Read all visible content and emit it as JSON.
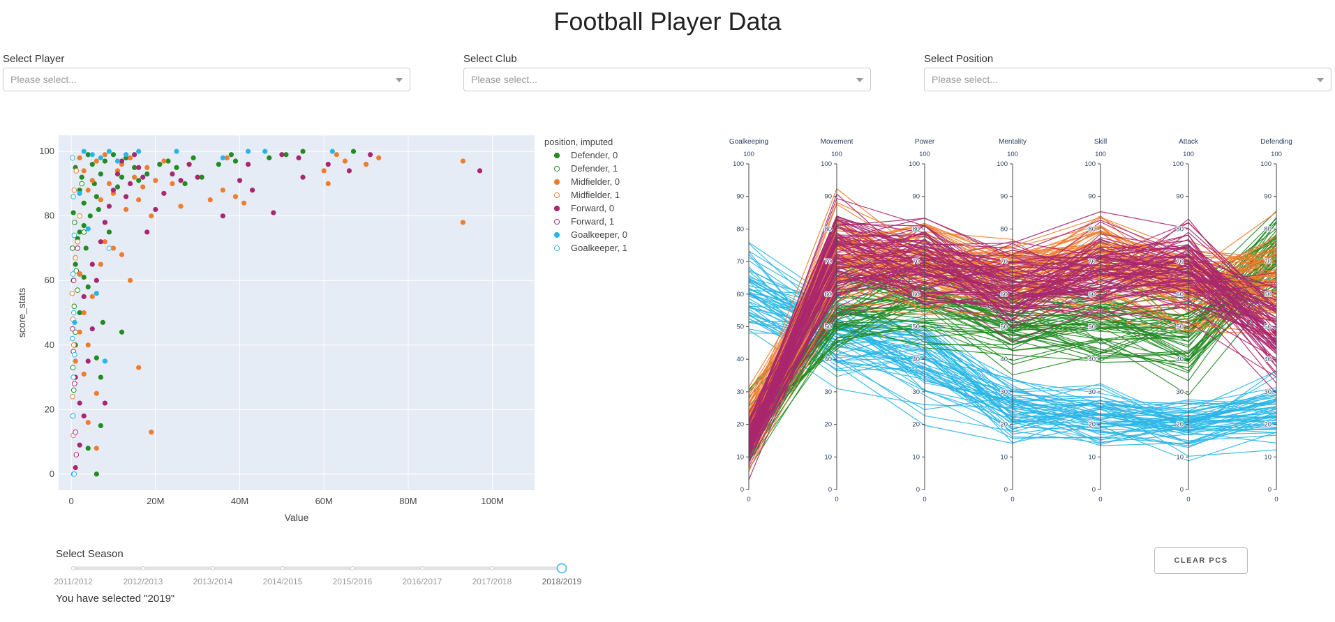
{
  "page": {
    "title": "Football Player Data"
  },
  "filters": {
    "player": {
      "label": "Select Player",
      "placeholder": "Please select..."
    },
    "club": {
      "label": "Select Club",
      "placeholder": "Please select..."
    },
    "position": {
      "label": "Select Position",
      "placeholder": "Please select..."
    }
  },
  "season": {
    "label": "Select Season",
    "ticks": [
      "2011/2012",
      "2012/2013",
      "2013/2014",
      "2014/2015",
      "2015/2016",
      "2016/2017",
      "2017/2018",
      "2018/2019"
    ],
    "selected_index": 7,
    "selected_text": "You have selected \"2019\""
  },
  "clear_button": {
    "label": "CLEAR PCS"
  },
  "colors": {
    "Defender": "#228b22",
    "Midfielder": "#f07c2e",
    "Forward": "#a8276e",
    "Goalkeeper": "#29b6e6",
    "plot_bg": "#e5ecf6"
  },
  "chart_data": [
    {
      "type": "scatter",
      "xlabel": "Value",
      "ylabel": "score_stats",
      "x_ticks": [
        "0",
        "20M",
        "40M",
        "60M",
        "80M",
        "100M"
      ],
      "x_tick_values": [
        0,
        20,
        40,
        60,
        80,
        100
      ],
      "y_ticks": [
        0,
        20,
        40,
        60,
        80,
        100
      ],
      "xlim": [
        -3,
        110
      ],
      "ylim": [
        -5,
        105
      ],
      "legend_title": "position, imputed",
      "legend_position": "right",
      "series": [
        {
          "name": "Defender, 0",
          "position": "Defender",
          "filled": true,
          "points": [
            [
              0.5,
              81
            ],
            [
              1,
              95
            ],
            [
              1.5,
              73
            ],
            [
              2,
              88
            ],
            [
              2.5,
              92
            ],
            [
              3,
              84
            ],
            [
              3.5,
              70
            ],
            [
              4,
              99
            ],
            [
              5,
              96
            ],
            [
              5.5,
              90
            ],
            [
              6,
              86
            ],
            [
              7,
              93
            ],
            [
              8,
              97
            ],
            [
              9,
              75
            ],
            [
              10,
              99
            ],
            [
              11,
              89
            ],
            [
              12,
              92
            ],
            [
              13,
              98
            ],
            [
              15,
              95
            ],
            [
              16,
              91
            ],
            [
              18,
              93
            ],
            [
              21,
              96
            ],
            [
              23,
              97
            ],
            [
              25,
              95
            ],
            [
              27,
              90
            ],
            [
              29,
              98
            ],
            [
              31,
              92
            ],
            [
              35,
              96
            ],
            [
              38,
              99
            ],
            [
              39,
              97
            ],
            [
              47,
              98
            ],
            [
              51,
              99
            ],
            [
              55,
              100
            ],
            [
              67,
              100
            ],
            [
              1,
              65
            ],
            [
              2,
              50
            ],
            [
              3,
              61
            ],
            [
              4,
              58
            ],
            [
              6,
              36
            ],
            [
              7,
              30
            ],
            [
              7.5,
              47
            ],
            [
              12,
              44
            ],
            [
              4,
              8
            ],
            [
              6,
              0
            ],
            [
              7,
              15
            ],
            [
              1,
              40
            ],
            [
              2,
              75
            ],
            [
              3,
              77
            ],
            [
              4.5,
              80
            ],
            [
              6.5,
              82
            ],
            [
              8,
              78
            ]
          ]
        },
        {
          "name": "Defender, 1",
          "position": "Defender",
          "filled": false,
          "points": [
            [
              0.3,
              70
            ],
            [
              0.5,
              60
            ],
            [
              0.7,
              52
            ],
            [
              1,
              44
            ],
            [
              0.4,
              33
            ],
            [
              0.6,
              26
            ],
            [
              1.2,
              63
            ],
            [
              0.8,
              78
            ],
            [
              1.5,
              57
            ],
            [
              2,
              62
            ],
            [
              2.5,
              90
            ],
            [
              3,
              75
            ]
          ]
        },
        {
          "name": "Midfielder, 0",
          "position": "Midfielder",
          "filled": true,
          "points": [
            [
              2,
              98
            ],
            [
              3,
              94
            ],
            [
              4,
              88
            ],
            [
              5,
              91
            ],
            [
              6,
              97
            ],
            [
              7,
              85
            ],
            [
              8,
              99
            ],
            [
              9,
              90
            ],
            [
              10,
              87
            ],
            [
              11,
              94
            ],
            [
              12,
              96
            ],
            [
              13,
              82
            ],
            [
              14,
              98
            ],
            [
              15,
              92
            ],
            [
              16,
              85
            ],
            [
              17,
              89
            ],
            [
              18,
              95
            ],
            [
              19,
              80
            ],
            [
              20,
              91
            ],
            [
              22,
              97
            ],
            [
              24,
              90
            ],
            [
              26,
              83
            ],
            [
              28,
              96
            ],
            [
              30,
              92
            ],
            [
              33,
              85
            ],
            [
              36,
              88
            ],
            [
              37,
              98
            ],
            [
              39,
              86
            ],
            [
              41,
              84
            ],
            [
              60,
              94
            ],
            [
              61,
              90
            ],
            [
              63,
              99
            ],
            [
              65,
              97
            ],
            [
              70,
              96
            ],
            [
              73,
              98
            ],
            [
              93,
              97
            ],
            [
              93,
              78
            ],
            [
              2,
              62
            ],
            [
              3,
              50
            ],
            [
              4,
              40
            ],
            [
              5,
              55
            ],
            [
              6,
              25
            ],
            [
              7,
              65
            ],
            [
              8,
              72
            ],
            [
              10,
              70
            ],
            [
              12,
              68
            ],
            [
              14,
              60
            ],
            [
              16,
              33
            ],
            [
              19,
              13
            ],
            [
              6,
              8
            ],
            [
              4,
              16
            ],
            [
              3,
              31
            ],
            [
              1,
              35
            ],
            [
              2,
              44
            ]
          ]
        },
        {
          "name": "Midfielder, 1",
          "position": "Midfielder",
          "filled": false,
          "points": [
            [
              0.2,
              56
            ],
            [
              0.4,
              48
            ],
            [
              0.6,
              40
            ],
            [
              0.8,
              30
            ],
            [
              0.3,
              24
            ],
            [
              0.5,
              12
            ],
            [
              1,
              67
            ],
            [
              1.5,
              72
            ],
            [
              2,
              80
            ],
            [
              0.7,
              88
            ],
            [
              1.2,
              94
            ]
          ]
        },
        {
          "name": "Forward, 0",
          "position": "Forward",
          "filled": true,
          "points": [
            [
              1,
              30
            ],
            [
              2,
              22
            ],
            [
              3,
              18
            ],
            [
              4,
              35
            ],
            [
              5,
              45
            ],
            [
              6,
              60
            ],
            [
              7,
              72
            ],
            [
              8,
              78
            ],
            [
              9,
              83
            ],
            [
              10,
              88
            ],
            [
              11,
              93
            ],
            [
              12,
              97
            ],
            [
              13,
              86
            ],
            [
              14,
              90
            ],
            [
              15,
              99
            ],
            [
              16,
              95
            ],
            [
              17,
              92
            ],
            [
              18,
              75
            ],
            [
              20,
              82
            ],
            [
              22,
              87
            ],
            [
              24,
              93
            ],
            [
              26,
              91
            ],
            [
              28,
              96
            ],
            [
              30,
              92
            ],
            [
              36,
              80
            ],
            [
              40,
              91
            ],
            [
              42,
              96
            ],
            [
              43,
              88
            ],
            [
              48,
              81
            ],
            [
              50,
              99
            ],
            [
              54,
              98
            ],
            [
              55,
              92
            ],
            [
              61,
              96
            ],
            [
              66,
              94
            ],
            [
              71,
              99
            ],
            [
              97,
              94
            ],
            [
              2,
              9
            ],
            [
              1,
              2
            ],
            [
              3,
              55
            ],
            [
              8,
              22
            ],
            [
              5,
              65
            ]
          ]
        },
        {
          "name": "Forward, 1",
          "position": "Forward",
          "filled": false,
          "points": [
            [
              0.3,
              45
            ],
            [
              0.5,
              38
            ],
            [
              0.8,
              28
            ],
            [
              0.4,
              18
            ],
            [
              1,
              13
            ],
            [
              1.2,
              6
            ],
            [
              0.6,
              60
            ],
            [
              1.5,
              70
            ]
          ]
        },
        {
          "name": "Goalkeeper, 0",
          "position": "Goalkeeper",
          "filled": true,
          "points": [
            [
              3,
              100
            ],
            [
              5,
              99
            ],
            [
              7,
              98
            ],
            [
              9,
              100
            ],
            [
              11,
              97
            ],
            [
              13,
              99
            ],
            [
              16,
              100
            ],
            [
              25,
              100
            ],
            [
              36,
              98
            ],
            [
              42,
              100
            ],
            [
              46,
              100
            ],
            [
              62,
              100
            ],
            [
              2,
              87
            ],
            [
              4,
              76
            ],
            [
              6,
              56
            ],
            [
              8,
              35
            ],
            [
              0.5,
              0
            ],
            [
              0.8,
              47
            ]
          ]
        },
        {
          "name": "Goalkeeper, 1",
          "position": "Goalkeeper",
          "filled": false,
          "points": [
            [
              0.3,
              98
            ],
            [
              0.5,
              86
            ],
            [
              0.7,
              74
            ],
            [
              0.4,
              62
            ],
            [
              0.6,
              50
            ],
            [
              0.3,
              42
            ],
            [
              0.8,
              37
            ],
            [
              0.5,
              30
            ],
            [
              0.4,
              18
            ],
            [
              9,
              70
            ],
            [
              0.7,
              0
            ]
          ]
        }
      ]
    },
    {
      "type": "line",
      "subtype": "parallel_coordinates",
      "dimensions": [
        "Goalkeeping",
        "Movement",
        "Power",
        "Mentality",
        "Skill",
        "Attack",
        "Defending"
      ],
      "range": [
        0,
        100
      ],
      "range_labels": [
        "100",
        "0"
      ],
      "ticks": [
        0,
        10,
        20,
        30,
        40,
        50,
        60,
        70,
        80,
        90,
        100
      ],
      "groups": [
        {
          "position": "Goalkeeper",
          "profile": [
            60,
            45,
            40,
            25,
            22,
            20,
            24
          ],
          "spread": [
            10,
            10,
            10,
            7,
            7,
            6,
            7
          ],
          "count": 60
        },
        {
          "position": "Defender",
          "profile": [
            18,
            55,
            58,
            52,
            52,
            47,
            72
          ],
          "spread": [
            8,
            10,
            10,
            10,
            10,
            10,
            10
          ],
          "count": 60
        },
        {
          "position": "Midfielder",
          "profile": [
            18,
            70,
            68,
            65,
            70,
            62,
            65
          ],
          "spread": [
            7,
            12,
            10,
            10,
            10,
            10,
            12
          ],
          "count": 80
        },
        {
          "position": "Forward",
          "profile": [
            14,
            72,
            70,
            62,
            66,
            68,
            48
          ],
          "spread": [
            6,
            12,
            10,
            10,
            10,
            10,
            12
          ],
          "count": 80
        }
      ]
    }
  ]
}
